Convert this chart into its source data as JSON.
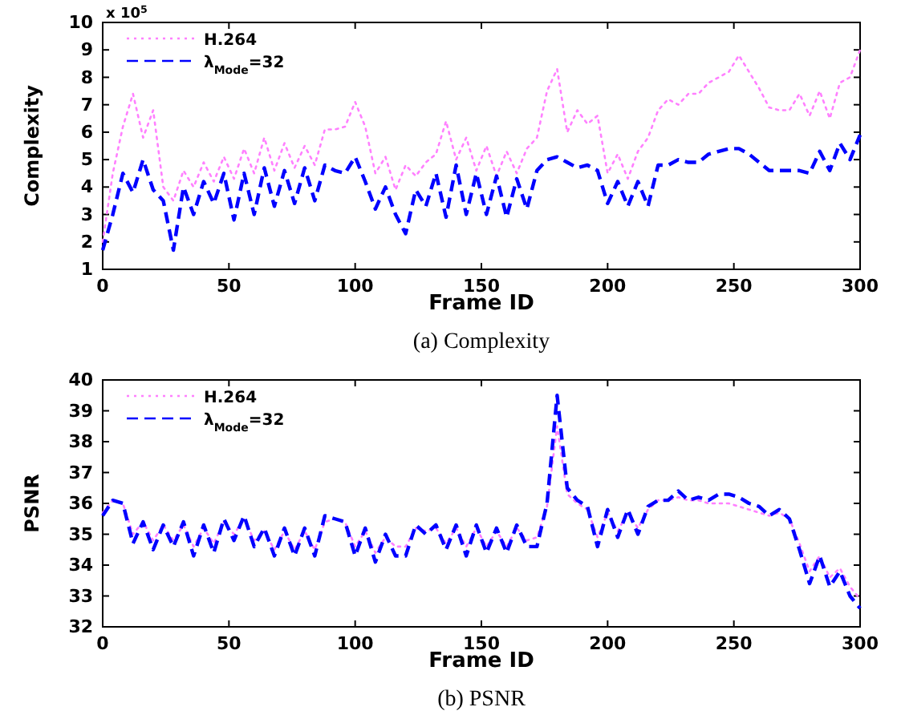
{
  "chart_data": [
    {
      "type": "line",
      "title": "(a)  Complexity",
      "xlabel": "Frame ID",
      "ylabel": "Complexity",
      "annotations": [
        "x 10$^{5}$"
      ],
      "xlim": [
        0,
        300
      ],
      "xticks": [
        0,
        50,
        100,
        150,
        200,
        250,
        300
      ],
      "ylim": [
        1,
        10
      ],
      "yticks": [
        1,
        2,
        3,
        4,
        5,
        6,
        7,
        8,
        9,
        10
      ],
      "grid": false,
      "legend": "top left",
      "marker": "none",
      "x": [
        0,
        4,
        8,
        12,
        16,
        20,
        24,
        28,
        32,
        36,
        40,
        44,
        48,
        52,
        56,
        60,
        64,
        68,
        72,
        76,
        80,
        84,
        88,
        92,
        96,
        100,
        104,
        108,
        112,
        116,
        120,
        124,
        128,
        132,
        136,
        140,
        144,
        148,
        152,
        156,
        160,
        164,
        168,
        172,
        176,
        180,
        184,
        188,
        192,
        196,
        200,
        204,
        208,
        212,
        216,
        220,
        224,
        228,
        232,
        236,
        240,
        244,
        248,
        252,
        256,
        260,
        264,
        268,
        272,
        276,
        280,
        284,
        288,
        292,
        296,
        300
      ],
      "series": [
        {
          "name": "H.264",
          "color": "#ff80ff",
          "line_style": "dotted",
          "values": [
            2.0,
            4.5,
            6.2,
            7.4,
            5.8,
            6.8,
            4.0,
            3.5,
            4.6,
            4.0,
            4.9,
            4.2,
            5.1,
            4.3,
            5.4,
            4.5,
            5.8,
            4.6,
            5.6,
            4.7,
            5.5,
            4.8,
            6.1,
            6.1,
            6.2,
            7.1,
            6.2,
            4.5,
            5.1,
            3.9,
            4.8,
            4.4,
            4.9,
            5.2,
            6.4,
            5.0,
            5.8,
            4.6,
            5.5,
            4.4,
            5.3,
            4.5,
            5.4,
            5.8,
            7.5,
            8.3,
            6.0,
            6.8,
            6.3,
            6.6,
            4.5,
            5.2,
            4.3,
            5.3,
            5.8,
            6.8,
            7.2,
            7.0,
            7.4,
            7.4,
            7.8,
            8.0,
            8.2,
            8.8,
            8.2,
            7.6,
            6.9,
            6.8,
            6.8,
            7.4,
            6.6,
            7.5,
            6.5,
            7.8,
            8.0,
            9.0
          ]
        },
        {
          "name": "λ$_{Mode}$=32",
          "color": "#0000ff",
          "line_style": "dashed",
          "values": [
            1.7,
            3.0,
            4.5,
            3.8,
            5.0,
            3.9,
            3.5,
            1.7,
            4.0,
            3.0,
            4.2,
            3.4,
            4.5,
            2.8,
            4.5,
            3.0,
            4.7,
            3.3,
            4.6,
            3.4,
            4.7,
            3.5,
            4.8,
            4.6,
            4.5,
            5.1,
            4.2,
            3.2,
            4.0,
            3.0,
            2.3,
            3.9,
            3.3,
            4.5,
            2.9,
            4.8,
            3.0,
            4.5,
            3.0,
            4.4,
            2.9,
            4.3,
            3.2,
            4.6,
            5.0,
            5.1,
            4.9,
            4.7,
            4.8,
            4.6,
            3.4,
            4.2,
            3.3,
            4.2,
            3.3,
            4.8,
            4.8,
            5.0,
            4.9,
            4.9,
            5.2,
            5.3,
            5.4,
            5.4,
            5.2,
            4.9,
            4.6,
            4.6,
            4.6,
            4.6,
            4.5,
            5.3,
            4.6,
            5.6,
            5.0,
            5.9
          ]
        }
      ]
    },
    {
      "type": "line",
      "title": "(b)  PSNR",
      "xlabel": "Frame ID",
      "ylabel": "PSNR",
      "xlim": [
        0,
        300
      ],
      "xticks": [
        0,
        50,
        100,
        150,
        200,
        250,
        300
      ],
      "ylim": [
        32,
        40
      ],
      "yticks": [
        32,
        33,
        34,
        35,
        36,
        37,
        38,
        39,
        40
      ],
      "grid": false,
      "legend": "top left",
      "marker": "none",
      "x": [
        0,
        4,
        8,
        12,
        16,
        20,
        24,
        28,
        32,
        36,
        40,
        44,
        48,
        52,
        56,
        60,
        64,
        68,
        72,
        76,
        80,
        84,
        88,
        92,
        96,
        100,
        104,
        108,
        112,
        116,
        120,
        124,
        128,
        132,
        136,
        140,
        144,
        148,
        152,
        156,
        160,
        164,
        168,
        172,
        176,
        180,
        184,
        188,
        192,
        196,
        200,
        204,
        208,
        212,
        216,
        220,
        224,
        228,
        232,
        236,
        240,
        244,
        248,
        252,
        256,
        260,
        264,
        268,
        272,
        276,
        280,
        284,
        288,
        292,
        296,
        300
      ],
      "series": [
        {
          "name": "H.264",
          "color": "#ff80ff",
          "line_style": "dotted",
          "values": [
            35.7,
            36.1,
            36.0,
            35.0,
            35.4,
            34.8,
            35.3,
            34.8,
            35.3,
            34.6,
            35.2,
            34.7,
            35.4,
            35.0,
            35.5,
            34.8,
            35.1,
            34.5,
            35.1,
            34.5,
            35.1,
            34.5,
            35.4,
            35.5,
            35.4,
            34.6,
            35.1,
            34.4,
            34.9,
            34.6,
            34.6,
            35.2,
            35.1,
            35.2,
            34.7,
            35.2,
            34.6,
            35.2,
            34.6,
            35.1,
            34.6,
            35.2,
            34.8,
            34.9,
            35.9,
            38.5,
            36.3,
            36.0,
            35.8,
            34.9,
            35.7,
            35.1,
            35.7,
            35.2,
            35.8,
            36.1,
            36.1,
            36.2,
            36.1,
            36.1,
            36.0,
            36.0,
            36.0,
            35.9,
            35.8,
            35.7,
            35.6,
            35.7,
            35.5,
            34.7,
            33.8,
            34.3,
            33.6,
            33.9,
            33.3,
            32.9
          ]
        },
        {
          "name": "λ$_{Mode}$=32",
          "color": "#0000ff",
          "line_style": "dashed",
          "values": [
            35.6,
            36.1,
            36.0,
            34.7,
            35.4,
            34.5,
            35.3,
            34.6,
            35.4,
            34.3,
            35.3,
            34.4,
            35.5,
            34.8,
            35.6,
            34.6,
            35.2,
            34.3,
            35.2,
            34.3,
            35.2,
            34.3,
            35.6,
            35.5,
            35.4,
            34.3,
            35.2,
            34.1,
            35.0,
            34.3,
            34.3,
            35.3,
            35.0,
            35.3,
            34.5,
            35.3,
            34.3,
            35.3,
            34.4,
            35.2,
            34.4,
            35.3,
            34.6,
            34.6,
            36.0,
            39.5,
            36.5,
            36.1,
            35.9,
            34.6,
            35.8,
            34.9,
            35.8,
            35.0,
            35.9,
            36.1,
            36.1,
            36.4,
            36.1,
            36.2,
            36.1,
            36.3,
            36.3,
            36.2,
            36.0,
            35.9,
            35.6,
            35.8,
            35.5,
            34.5,
            33.4,
            34.3,
            33.3,
            33.8,
            33.0,
            32.6
          ]
        }
      ]
    }
  ]
}
